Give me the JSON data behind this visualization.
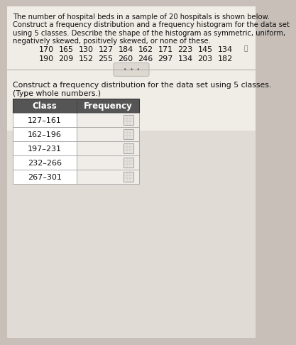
{
  "title_lines": [
    "The number of hospital beds in a sample of 20 hospitals is shown below.",
    "Construct a frequency distribution and a frequency histogram for the data set",
    "using 5 classes. Describe the shape of the histogram as symmetric, uniform,",
    "negatively skewed, positively skewed, or none of these."
  ],
  "data_row1": [
    "170",
    "165",
    "130",
    "127",
    "184",
    "162",
    "171",
    "223",
    "145",
    "134"
  ],
  "data_row2": [
    "190",
    "209",
    "152",
    "255",
    "260",
    "246",
    "297",
    "134",
    "203",
    "182"
  ],
  "subtitle_lines": [
    "Construct a frequency distribution for the data set using 5 classes.",
    "(Type whole numbers.)"
  ],
  "col_headers": [
    "Class",
    "Frequency"
  ],
  "classes": [
    "127–161",
    "162–196",
    "197–231",
    "232–266",
    "267–301"
  ],
  "top_bg": "#f0ece6",
  "bottom_bg": "#e0dbd4",
  "page_bg": "#c8c0b8",
  "table_header_bg": "#555555",
  "table_header_fg": "#ffffff",
  "table_class_bg": "#ffffff",
  "table_freq_bg": "#f0ece8",
  "input_box_bg": "#e8e4de",
  "input_box_border": "#aaaaaa",
  "grid_color": "#aaaaaa",
  "text_color": "#111111",
  "divider_color": "#aaaaaa",
  "ellipsis_bg": "#ddd8d0",
  "ellipsis_border": "#bbbbbb"
}
